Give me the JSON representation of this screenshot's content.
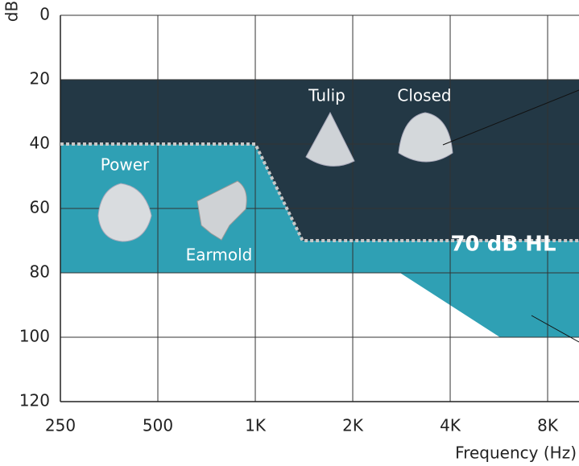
{
  "chart_data": {
    "type": "area",
    "y_label": "dB",
    "x_label": "Frequency (Hz)",
    "xscale": "log",
    "xlim": [
      250,
      10000
    ],
    "xticks": [
      250,
      500,
      {
        "value": 1000,
        "label": "1K"
      },
      {
        "value": 2000,
        "label": "2K"
      },
      {
        "value": 4000,
        "label": "4K"
      },
      {
        "value": 8000,
        "label": "8K"
      }
    ],
    "ylim": [
      0,
      120
    ],
    "yticks": [
      0,
      20,
      40,
      60,
      80,
      100,
      120
    ],
    "y_inverted": true,
    "grid": true,
    "areas": [
      {
        "color": "#2fa0b4",
        "x": [
          250,
          1000,
          1400,
          10000,
          10000,
          5700,
          2800,
          250
        ],
        "y": [
          40,
          40,
          70,
          70,
          100,
          100,
          80,
          80
        ]
      },
      {
        "color": "#233845",
        "x": [
          250,
          10000,
          10000,
          1400,
          1000,
          250
        ],
        "y": [
          20,
          20,
          70,
          70,
          40,
          40
        ]
      }
    ],
    "boundary": {
      "color": "#c8c8c8",
      "x": [
        250,
        1000,
        1400,
        10000
      ],
      "y": [
        40,
        40,
        70,
        70
      ]
    },
    "annotations": [
      "Power",
      "Earmold",
      "Tulip",
      "Closed",
      "70 dB HL"
    ]
  }
}
